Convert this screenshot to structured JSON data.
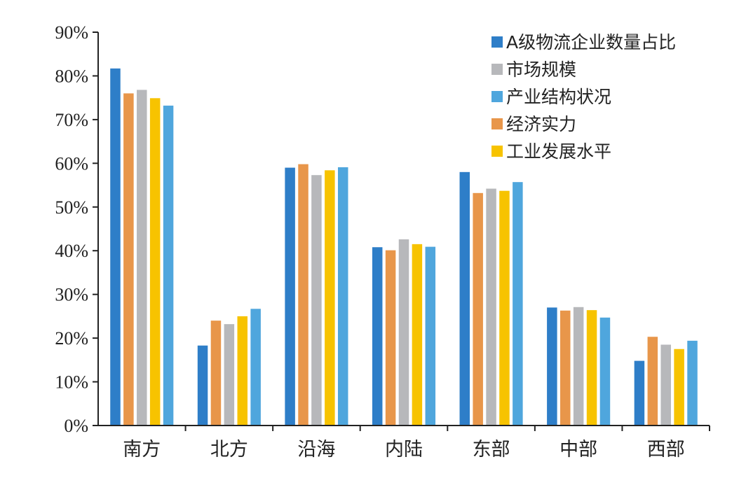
{
  "chart_data": {
    "type": "bar",
    "title": "",
    "xlabel": "",
    "ylabel": "",
    "ylim": [
      0,
      90
    ],
    "y_ticks": [
      "0%",
      "10%",
      "20%",
      "30%",
      "40%",
      "50%",
      "60%",
      "70%",
      "80%",
      "90%"
    ],
    "categories": [
      "南方",
      "北方",
      "沿海",
      "内陆",
      "东部",
      "中部",
      "西部"
    ],
    "legend_position": "top-right",
    "grid": false,
    "series": [
      {
        "name": "A级物流企业数量占比",
        "color": "#2e7ec8",
        "values": [
          81.7,
          18.3,
          59.0,
          40.8,
          58.0,
          27.0,
          14.8
        ]
      },
      {
        "name": "经济实力",
        "color": "#e8964a",
        "values": [
          76.0,
          24.0,
          59.8,
          40.1,
          53.2,
          26.3,
          20.3
        ]
      },
      {
        "name": "市场规模",
        "color": "#b7b8bb",
        "values": [
          76.8,
          23.2,
          57.3,
          42.6,
          54.2,
          27.1,
          18.5
        ]
      },
      {
        "name": "工业发展水平",
        "color": "#f7c300",
        "values": [
          74.9,
          25.0,
          58.4,
          41.5,
          53.7,
          26.4,
          17.5
        ]
      },
      {
        "name": "产业结构状况",
        "color": "#4fa6dd",
        "values": [
          73.2,
          26.7,
          59.1,
          40.9,
          55.7,
          24.7,
          19.4
        ]
      }
    ],
    "legend_order": [
      "A级物流企业数量占比",
      "市场规模",
      "产业结构状况",
      "经济实力",
      "工业发展水平"
    ]
  }
}
